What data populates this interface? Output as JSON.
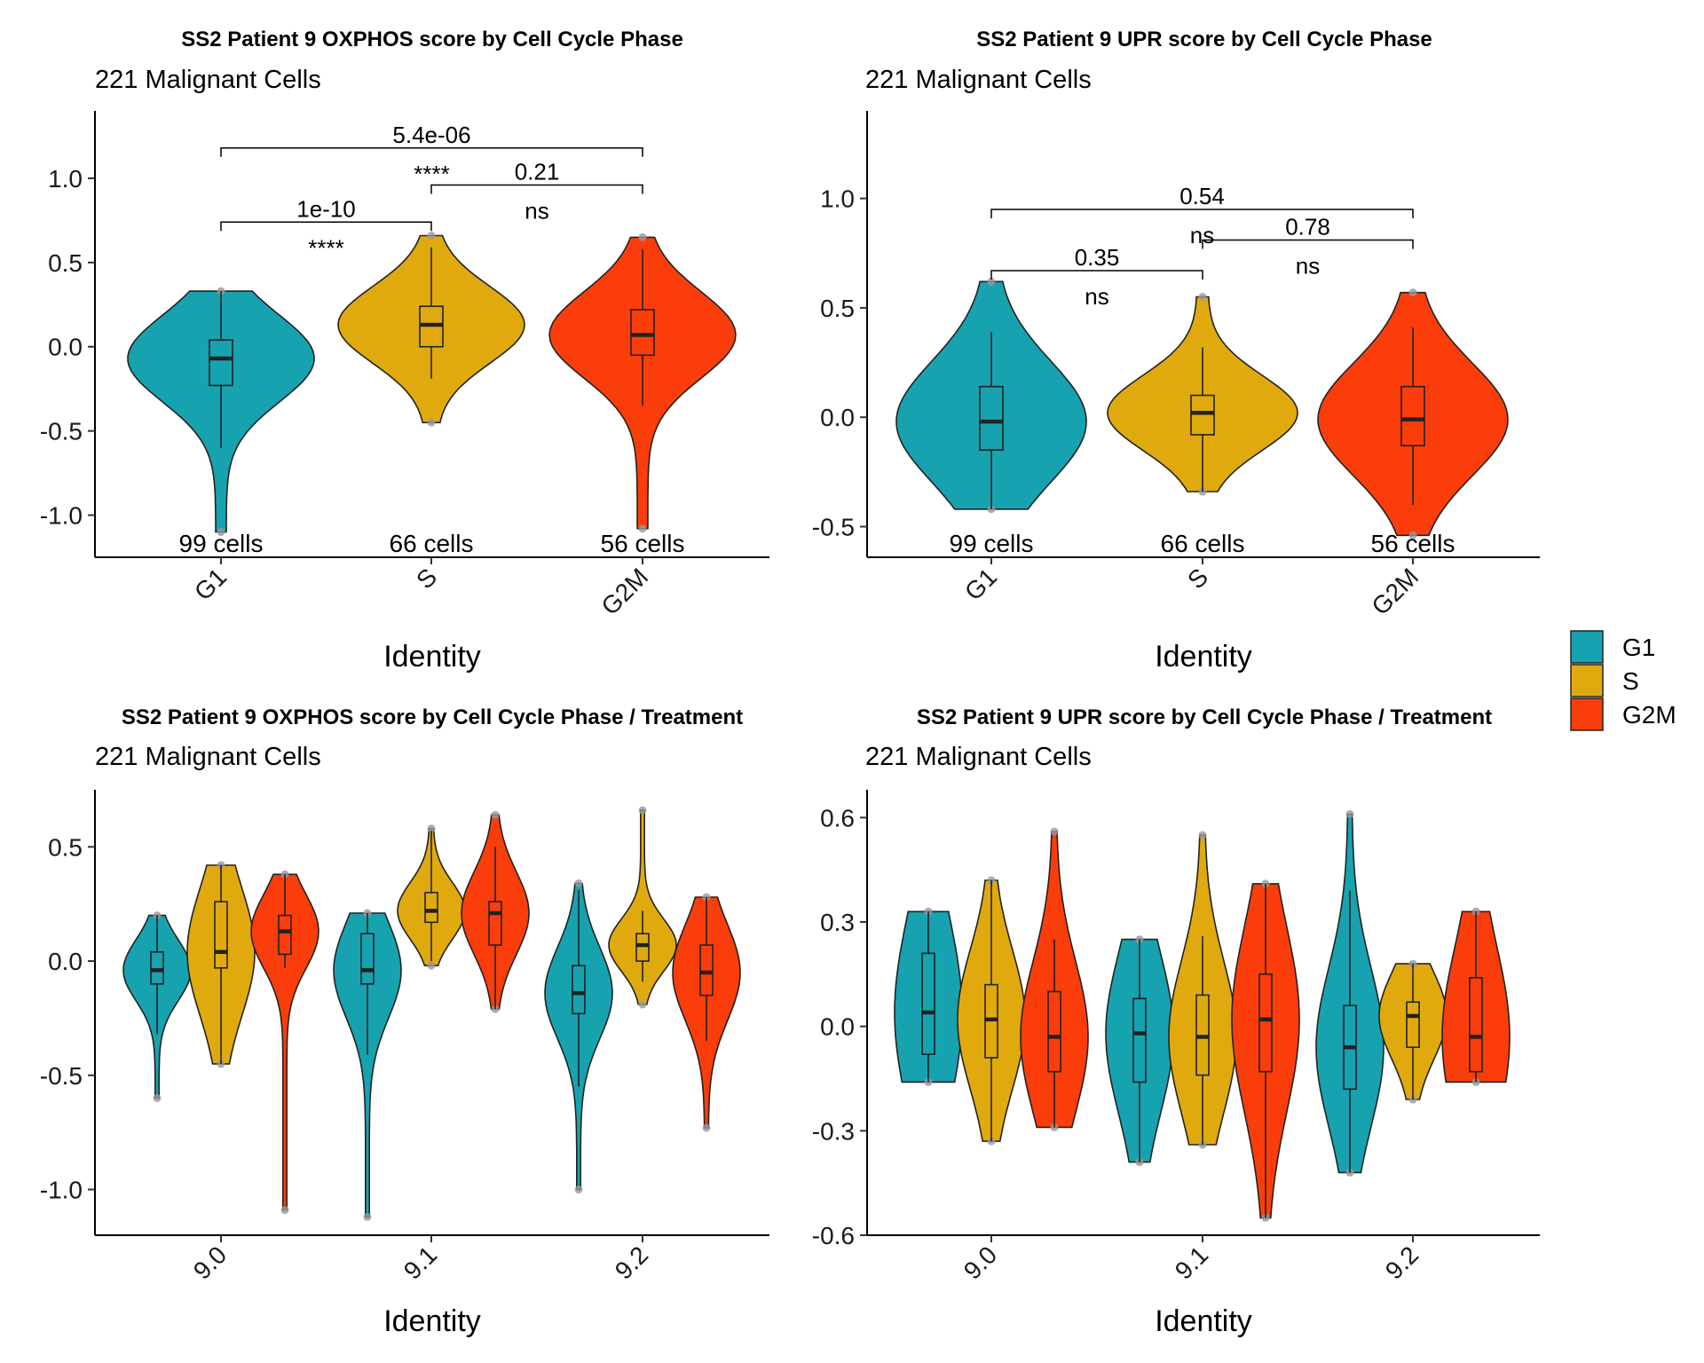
{
  "colors": {
    "G1": "#17A2B0",
    "S": "#E0AA0F",
    "G2M": "#FA3D0A",
    "outline": "#222222"
  },
  "legend": {
    "items": [
      "G1",
      "S",
      "G2M"
    ]
  },
  "chart_data": [
    {
      "type": "violin",
      "title": "SS2 Patient 9 OXPHOS score by Cell Cycle Phase",
      "subtitle": "221 Malignant Cells",
      "xlabel": "Identity",
      "ylim": [
        -1.25,
        1.4
      ],
      "yticks": [
        1.0,
        0.5,
        0.0,
        -0.5,
        -1.0
      ],
      "ytick_labels": [
        "1.0",
        "0.5",
        "0.0",
        "-0.5",
        "-1.0"
      ],
      "categories": [
        "G1",
        "S",
        "G2M"
      ],
      "series": [
        {
          "name": "G1",
          "min": -1.1,
          "max": 0.33,
          "q1": -0.23,
          "median": -0.07,
          "q3": 0.04,
          "whisker_low": -0.6,
          "whisker_high": 0.33,
          "count_label": "99 cells"
        },
        {
          "name": "S",
          "min": -0.45,
          "max": 0.66,
          "q1": 0.0,
          "median": 0.13,
          "q3": 0.24,
          "whisker_low": -0.19,
          "whisker_high": 0.59,
          "count_label": "66 cells"
        },
        {
          "name": "G2M",
          "min": -1.08,
          "max": 0.65,
          "q1": -0.05,
          "median": 0.07,
          "q3": 0.22,
          "whisker_low": -0.35,
          "whisker_high": 0.58,
          "count_label": "56 cells"
        }
      ],
      "comparisons": [
        {
          "groups": [
            "G1",
            "S"
          ],
          "p": "1e-10",
          "signif": "****",
          "y": 0.74
        },
        {
          "groups": [
            "S",
            "G2M"
          ],
          "p": "0.21",
          "signif": "ns",
          "y": 0.96
        },
        {
          "groups": [
            "G1",
            "G2M"
          ],
          "p": "5.4e-06",
          "signif": "****",
          "y": 1.18
        }
      ]
    },
    {
      "type": "violin",
      "title": "SS2 Patient 9 UPR score by Cell Cycle Phase",
      "subtitle": "221 Malignant Cells",
      "xlabel": "Identity",
      "ylim": [
        -0.64,
        1.4
      ],
      "yticks": [
        1.0,
        0.5,
        0.0,
        -0.5
      ],
      "ytick_labels": [
        "1.0",
        "0.5",
        "0.0",
        "-0.5"
      ],
      "categories": [
        "G1",
        "S",
        "G2M"
      ],
      "series": [
        {
          "name": "G1",
          "min": -0.42,
          "max": 0.62,
          "q1": -0.15,
          "median": -0.02,
          "q3": 0.14,
          "whisker_low": -0.42,
          "whisker_high": 0.39,
          "count_label": "99 cells"
        },
        {
          "name": "S",
          "min": -0.34,
          "max": 0.55,
          "q1": -0.08,
          "median": 0.02,
          "q3": 0.1,
          "whisker_low": -0.34,
          "whisker_high": 0.32,
          "count_label": "66 cells"
        },
        {
          "name": "G2M",
          "min": -0.54,
          "max": 0.57,
          "q1": -0.13,
          "median": -0.01,
          "q3": 0.14,
          "whisker_low": -0.4,
          "whisker_high": 0.41,
          "count_label": "56 cells"
        }
      ],
      "comparisons": [
        {
          "groups": [
            "G1",
            "S"
          ],
          "p": "0.35",
          "signif": "ns",
          "y": 0.67
        },
        {
          "groups": [
            "S",
            "G2M"
          ],
          "p": "0.78",
          "signif": "ns",
          "y": 0.81
        },
        {
          "groups": [
            "G1",
            "G2M"
          ],
          "p": "0.54",
          "signif": "ns",
          "y": 0.95
        }
      ]
    },
    {
      "type": "violin",
      "title": "SS2 Patient 9 OXPHOS score by Cell Cycle Phase / Treatment",
      "subtitle": "221 Malignant Cells",
      "xlabel": "Identity",
      "ylim": [
        -1.2,
        0.75
      ],
      "yticks": [
        0.5,
        0.0,
        -0.5,
        -1.0
      ],
      "ytick_labels": [
        "0.5",
        "0.0",
        "-0.5",
        "-1.0"
      ],
      "categories": [
        "9.0",
        "9.1",
        "9.2"
      ],
      "series": [
        {
          "group": "9.0",
          "name": "G1",
          "min": -0.6,
          "max": 0.2,
          "q1": -0.1,
          "median": -0.04,
          "q3": 0.04,
          "whisker_low": -0.32,
          "whisker_high": 0.2
        },
        {
          "group": "9.0",
          "name": "S",
          "min": -0.45,
          "max": 0.42,
          "q1": -0.03,
          "median": 0.04,
          "q3": 0.26,
          "whisker_low": -0.45,
          "whisker_high": 0.42
        },
        {
          "group": "9.0",
          "name": "G2M",
          "min": -1.09,
          "max": 0.38,
          "q1": 0.03,
          "median": 0.13,
          "q3": 0.2,
          "whisker_low": -0.03,
          "whisker_high": 0.38
        },
        {
          "group": "9.1",
          "name": "G1",
          "min": -1.12,
          "max": 0.21,
          "q1": -0.1,
          "median": -0.04,
          "q3": 0.12,
          "whisker_low": -0.41,
          "whisker_high": 0.21
        },
        {
          "group": "9.1",
          "name": "S",
          "min": -0.02,
          "max": 0.58,
          "q1": 0.17,
          "median": 0.22,
          "q3": 0.3,
          "whisker_low": 0.0,
          "whisker_high": 0.57
        },
        {
          "group": "9.1",
          "name": "G2M",
          "min": -0.21,
          "max": 0.64,
          "q1": 0.07,
          "median": 0.21,
          "q3": 0.26,
          "whisker_low": -0.21,
          "whisker_high": 0.5
        },
        {
          "group": "9.2",
          "name": "G1",
          "min": -1.0,
          "max": 0.34,
          "q1": -0.23,
          "median": -0.14,
          "q3": -0.02,
          "whisker_low": -0.55,
          "whisker_high": 0.31
        },
        {
          "group": "9.2",
          "name": "S",
          "min": -0.19,
          "max": 0.66,
          "q1": 0.0,
          "median": 0.07,
          "q3": 0.12,
          "whisker_low": -0.09,
          "whisker_high": 0.22
        },
        {
          "group": "9.2",
          "name": "G2M",
          "min": -0.73,
          "max": 0.28,
          "q1": -0.15,
          "median": -0.05,
          "q3": 0.07,
          "whisker_low": -0.35,
          "whisker_high": 0.28
        }
      ]
    },
    {
      "type": "violin",
      "title": "SS2 Patient 9 UPR score by Cell Cycle Phase / Treatment",
      "subtitle": "221 Malignant Cells",
      "xlabel": "Identity",
      "ylim": [
        -0.6,
        0.68
      ],
      "yticks": [
        0.6,
        0.3,
        0.0,
        -0.3,
        -0.6
      ],
      "ytick_labels": [
        "0.6",
        "0.3",
        "0.0",
        "-0.3",
        "-0.6"
      ],
      "categories": [
        "9.0",
        "9.1",
        "9.2"
      ],
      "series": [
        {
          "group": "9.0",
          "name": "G1",
          "min": -0.16,
          "max": 0.33,
          "q1": -0.08,
          "median": 0.04,
          "q3": 0.21,
          "whisker_low": -0.16,
          "whisker_high": 0.33
        },
        {
          "group": "9.0",
          "name": "S",
          "min": -0.33,
          "max": 0.42,
          "q1": -0.09,
          "median": 0.02,
          "q3": 0.12,
          "whisker_low": -0.33,
          "whisker_high": 0.42
        },
        {
          "group": "9.0",
          "name": "G2M",
          "min": -0.29,
          "max": 0.56,
          "q1": -0.13,
          "median": -0.03,
          "q3": 0.1,
          "whisker_low": -0.29,
          "whisker_high": 0.25
        },
        {
          "group": "9.1",
          "name": "G1",
          "min": -0.39,
          "max": 0.25,
          "q1": -0.16,
          "median": -0.02,
          "q3": 0.08,
          "whisker_low": -0.39,
          "whisker_high": 0.25
        },
        {
          "group": "9.1",
          "name": "S",
          "min": -0.34,
          "max": 0.55,
          "q1": -0.14,
          "median": -0.03,
          "q3": 0.09,
          "whisker_low": -0.34,
          "whisker_high": 0.26
        },
        {
          "group": "9.1",
          "name": "G2M",
          "min": -0.55,
          "max": 0.41,
          "q1": -0.13,
          "median": 0.02,
          "q3": 0.15,
          "whisker_low": -0.55,
          "whisker_high": 0.41
        },
        {
          "group": "9.2",
          "name": "G1",
          "min": -0.42,
          "max": 0.61,
          "q1": -0.18,
          "median": -0.06,
          "q3": 0.06,
          "whisker_low": -0.42,
          "whisker_high": 0.39
        },
        {
          "group": "9.2",
          "name": "S",
          "min": -0.21,
          "max": 0.18,
          "q1": -0.06,
          "median": 0.03,
          "q3": 0.07,
          "whisker_low": -0.21,
          "whisker_high": 0.18
        },
        {
          "group": "9.2",
          "name": "G2M",
          "min": -0.16,
          "max": 0.33,
          "q1": -0.13,
          "median": -0.03,
          "q3": 0.14,
          "whisker_low": -0.16,
          "whisker_high": 0.33
        }
      ]
    }
  ]
}
